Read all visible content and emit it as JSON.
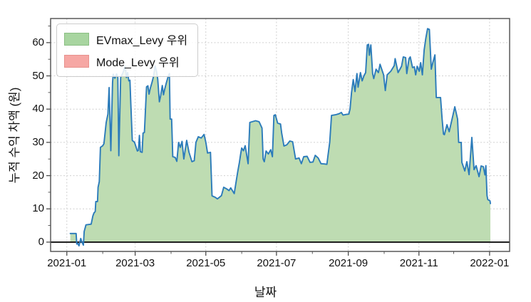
{
  "chart_data": {
    "type": "area",
    "title": "",
    "xlabel": "날짜",
    "ylabel": "누적 수익 차액 (원)",
    "legend": {
      "position": "upper-left",
      "items": [
        {
          "label": "EVmax_Levy 우위",
          "fill": "#a8d5a0",
          "edge": "#8bbf83"
        },
        {
          "label": "Mode_Levy 우위",
          "fill": "#f6a7a4",
          "edge": "#e8918d"
        }
      ]
    },
    "line_color": "#2b7bba",
    "area_positive_color": "#bedcb2",
    "area_negative_color": "#f6a7a4",
    "zero_line_color": "#111111",
    "grid": {
      "show": true,
      "color": "#d0d0d0",
      "style": "dashed"
    },
    "x_unit": "days since 2021-01-01",
    "xlim": [
      -14,
      382.3
    ],
    "ylim": [
      -2.8,
      67.25
    ],
    "x_major_ticks": [
      {
        "day": 0,
        "label": "2021-01"
      },
      {
        "day": 59,
        "label": "2021-03"
      },
      {
        "day": 120,
        "label": "2021-05"
      },
      {
        "day": 181,
        "label": "2021-07"
      },
      {
        "day": 243,
        "label": "2021-09"
      },
      {
        "day": 304,
        "label": "2021-11"
      },
      {
        "day": 365,
        "label": "2022-01"
      }
    ],
    "x_minor_ticks": [
      31,
      90,
      151,
      212,
      274,
      334
    ],
    "y_major_ticks": [
      0,
      10,
      20,
      30,
      40,
      50,
      60
    ],
    "y_minor_ticks": [
      5,
      15,
      25,
      35,
      45,
      55,
      65
    ],
    "series": [
      {
        "name": "누적 수익 차액",
        "points": [
          [
            3,
            2.6
          ],
          [
            8,
            2.6
          ],
          [
            8.6,
            -0.6
          ],
          [
            9.5,
            -0.4
          ],
          [
            10.5,
            -1.1
          ],
          [
            12,
            1.1
          ],
          [
            13,
            0
          ],
          [
            14.3,
            -0.9
          ],
          [
            15,
            3.2
          ],
          [
            16.5,
            5.2
          ],
          [
            21,
            5.4
          ],
          [
            22.5,
            7.9
          ],
          [
            23.5,
            8.8
          ],
          [
            24.5,
            9.2
          ],
          [
            25,
            12.2
          ],
          [
            26.5,
            12.2
          ],
          [
            27,
            16.5
          ],
          [
            28,
            18.2
          ],
          [
            29,
            28.5
          ],
          [
            31,
            29
          ],
          [
            32,
            29.6
          ],
          [
            34,
            36
          ],
          [
            35.5,
            38.5
          ],
          [
            36.5,
            46.5
          ],
          [
            38,
            27.5
          ],
          [
            39.5,
            48
          ],
          [
            40,
            50.5
          ],
          [
            41.5,
            49.3
          ],
          [
            43,
            50.6
          ],
          [
            44,
            49.5
          ],
          [
            44.9,
            26
          ],
          [
            46.5,
            49.5
          ],
          [
            48.5,
            51
          ],
          [
            50.4,
            52.9
          ],
          [
            51.5,
            49.5
          ],
          [
            52.5,
            51
          ],
          [
            53.5,
            48.5
          ],
          [
            54.5,
            48.7
          ],
          [
            55.3,
            41.3
          ],
          [
            56.5,
            30.6
          ],
          [
            58.5,
            30
          ],
          [
            60.9,
            27.4
          ],
          [
            61.8,
            27.6
          ],
          [
            62.7,
            32.1
          ],
          [
            63.5,
            27.2
          ],
          [
            65,
            27
          ],
          [
            65.8,
            32.8
          ],
          [
            67,
            33
          ],
          [
            68.8,
            46.7
          ],
          [
            70,
            47
          ],
          [
            71,
            44.5
          ],
          [
            72,
            46.2
          ],
          [
            73.5,
            48
          ],
          [
            75,
            50
          ],
          [
            76.2,
            53
          ],
          [
            77.5,
            51.3
          ],
          [
            78.5,
            49
          ],
          [
            79.9,
            42.2
          ],
          [
            81,
            44
          ],
          [
            82.4,
            47.1
          ],
          [
            83.5,
            44.3
          ],
          [
            84.5,
            46
          ],
          [
            86,
            48
          ],
          [
            87.5,
            49.8
          ],
          [
            88.6,
            50.7
          ],
          [
            89.2,
            37
          ],
          [
            90.5,
            37
          ],
          [
            91.5,
            25.7
          ],
          [
            93.5,
            25.5
          ],
          [
            95,
            24.3
          ],
          [
            96.5,
            30
          ],
          [
            98,
            28.5
          ],
          [
            99.5,
            30.3
          ],
          [
            101,
            25
          ],
          [
            103.5,
            30.6
          ],
          [
            105.5,
            27
          ],
          [
            108,
            24.2
          ],
          [
            110,
            24.5
          ],
          [
            111.5,
            30
          ],
          [
            113.5,
            31.7
          ],
          [
            116,
            31.3
          ],
          [
            118.5,
            32.4
          ],
          [
            120,
            30
          ],
          [
            121.5,
            26.8
          ],
          [
            124,
            27
          ],
          [
            125.4,
            13.9
          ],
          [
            128,
            13.5
          ],
          [
            130,
            13
          ],
          [
            133.5,
            14
          ],
          [
            135.5,
            16.5
          ],
          [
            138,
            16
          ],
          [
            140,
            15.5
          ],
          [
            141.5,
            16.3
          ],
          [
            144.5,
            14.6
          ],
          [
            147.5,
            21
          ],
          [
            149,
            24
          ],
          [
            150,
            26.3
          ],
          [
            151,
            28.3
          ],
          [
            152.5,
            27.5
          ],
          [
            154,
            29
          ],
          [
            156.5,
            23.6
          ],
          [
            158,
            36
          ],
          [
            160,
            36.2
          ],
          [
            163,
            36.5
          ],
          [
            166,
            36.2
          ],
          [
            168.5,
            34.3
          ],
          [
            169.5,
            25
          ],
          [
            170.5,
            24.2
          ],
          [
            172,
            27.4
          ],
          [
            174,
            26.5
          ],
          [
            176,
            27.8
          ],
          [
            177.5,
            25.7
          ],
          [
            178.8,
            38.1
          ],
          [
            180,
            38.3
          ],
          [
            182,
            35.8
          ],
          [
            184.5,
            35.5
          ],
          [
            185.5,
            32.8
          ],
          [
            187.5,
            28.9
          ],
          [
            190,
            29.3
          ],
          [
            192.5,
            30.4
          ],
          [
            195,
            30.2
          ],
          [
            197.5,
            25
          ],
          [
            200.5,
            25.3
          ],
          [
            202.5,
            23.6
          ],
          [
            204.5,
            25.7
          ],
          [
            207.5,
            25.8
          ],
          [
            210,
            24
          ],
          [
            212.5,
            24.1
          ],
          [
            214.5,
            26.1
          ],
          [
            217,
            25.3
          ],
          [
            219.5,
            23.6
          ],
          [
            222.5,
            23.5
          ],
          [
            224.5,
            23.4
          ],
          [
            225.5,
            26.1
          ],
          [
            227,
            30
          ],
          [
            228.5,
            38.1
          ],
          [
            232,
            38.3
          ],
          [
            235,
            38.6
          ],
          [
            237,
            39
          ],
          [
            238.5,
            38.2
          ],
          [
            241,
            38.4
          ],
          [
            243.5,
            38.5
          ],
          [
            244.5,
            40
          ],
          [
            245.8,
            45
          ],
          [
            247.3,
            48.9
          ],
          [
            248.8,
            45.3
          ],
          [
            250.5,
            50.7
          ],
          [
            251.5,
            46.6
          ],
          [
            253.5,
            51
          ],
          [
            255,
            48.5
          ],
          [
            256.5,
            50
          ],
          [
            258,
            51
          ],
          [
            259.4,
            59.3
          ],
          [
            260.5,
            59.5
          ],
          [
            261.2,
            56.2
          ],
          [
            262.5,
            59.3
          ],
          [
            264,
            50.7
          ],
          [
            265,
            49.2
          ],
          [
            267,
            52
          ],
          [
            269,
            51
          ],
          [
            270.4,
            53.5
          ],
          [
            273.5,
            50.3
          ],
          [
            275,
            45.6
          ],
          [
            276.6,
            50.3
          ],
          [
            279.7,
            51.4
          ],
          [
            282.7,
            53.1
          ],
          [
            283.5,
            55.2
          ],
          [
            286,
            51
          ],
          [
            289,
            52.9
          ],
          [
            290.5,
            55.7
          ],
          [
            292.5,
            55.5
          ],
          [
            293.5,
            50.7
          ],
          [
            295.5,
            55.2
          ],
          [
            296.5,
            55.7
          ],
          [
            298.5,
            52.5
          ],
          [
            300,
            52.7
          ],
          [
            301.2,
            50.3
          ],
          [
            302.5,
            52.9
          ],
          [
            304.3,
            51.4
          ],
          [
            305.5,
            54
          ],
          [
            307,
            50.3
          ],
          [
            308.5,
            57.8
          ],
          [
            310,
            61.4
          ],
          [
            311.5,
            64.2
          ],
          [
            313,
            64
          ],
          [
            314.7,
            52
          ],
          [
            316,
            54
          ],
          [
            317.8,
            56.3
          ],
          [
            319,
            43.5
          ],
          [
            322.7,
            43.5
          ],
          [
            324,
            37
          ],
          [
            325.2,
            32.5
          ],
          [
            326,
            32.3
          ],
          [
            328.2,
            35.3
          ],
          [
            330.1,
            33.2
          ],
          [
            333.2,
            37.9
          ],
          [
            335,
            40.7
          ],
          [
            337.4,
            37
          ],
          [
            338.3,
            30
          ],
          [
            340.5,
            30
          ],
          [
            341.1,
            24
          ],
          [
            343.6,
            21.4
          ],
          [
            345.4,
            24.2
          ],
          [
            347.3,
            20.3
          ],
          [
            349.7,
            31.5
          ],
          [
            351.6,
            21.8
          ],
          [
            353.4,
            23
          ],
          [
            355.9,
            19.7
          ],
          [
            357.7,
            22.9
          ],
          [
            359.6,
            22.7
          ],
          [
            361,
            20.2
          ],
          [
            361.8,
            23
          ],
          [
            362.8,
            14
          ],
          [
            363.5,
            12.8
          ],
          [
            364.5,
            12.6
          ],
          [
            365.4,
            12.4
          ],
          [
            365.7,
            11.6
          ]
        ]
      }
    ]
  }
}
